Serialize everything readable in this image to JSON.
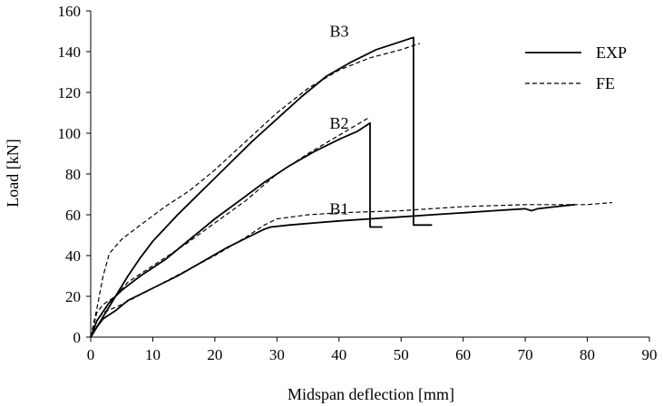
{
  "chart_data": {
    "type": "line",
    "title": "",
    "xlabel": "Midspan deflection [mm]",
    "ylabel": "Load [kN]",
    "xlim": [
      0,
      90
    ],
    "ylim": [
      0,
      160
    ],
    "xticks": [
      0,
      10,
      20,
      30,
      40,
      50,
      60,
      70,
      80,
      90
    ],
    "yticks": [
      0,
      20,
      40,
      60,
      80,
      100,
      120,
      140,
      160
    ],
    "grid": false,
    "legend": {
      "position": "top-right",
      "entries": [
        {
          "label": "EXP",
          "style": "solid"
        },
        {
          "label": "FE",
          "style": "dashed"
        }
      ]
    },
    "annotations": [
      {
        "text": "B3",
        "x": 38.5,
        "y": 150
      },
      {
        "text": "B2",
        "x": 38.5,
        "y": 105
      },
      {
        "text": "B1",
        "x": 38.5,
        "y": 63
      }
    ],
    "series": [
      {
        "group": "B1",
        "kind": "EXP",
        "style": "solid",
        "points": [
          [
            0,
            0
          ],
          [
            1,
            5
          ],
          [
            2,
            9
          ],
          [
            4,
            13
          ],
          [
            6,
            18
          ],
          [
            10,
            24
          ],
          [
            14,
            30
          ],
          [
            18,
            37
          ],
          [
            22,
            44
          ],
          [
            26,
            50
          ],
          [
            28,
            53
          ],
          [
            29,
            54
          ],
          [
            32,
            55
          ],
          [
            36,
            56
          ],
          [
            40,
            57
          ],
          [
            45,
            58
          ],
          [
            50,
            59
          ],
          [
            55,
            60
          ],
          [
            60,
            61
          ],
          [
            65,
            62
          ],
          [
            70,
            63
          ],
          [
            71,
            62
          ],
          [
            72,
            63
          ],
          [
            75,
            64
          ],
          [
            78,
            65
          ]
        ]
      },
      {
        "group": "B1",
        "kind": "FE",
        "style": "dashed",
        "points": [
          [
            0,
            0
          ],
          [
            1,
            8
          ],
          [
            2,
            12
          ],
          [
            5,
            16
          ],
          [
            10,
            24
          ],
          [
            15,
            32
          ],
          [
            20,
            40
          ],
          [
            25,
            49
          ],
          [
            28,
            55
          ],
          [
            30,
            58
          ],
          [
            35,
            60
          ],
          [
            40,
            61
          ],
          [
            50,
            62
          ],
          [
            60,
            64
          ],
          [
            70,
            65
          ],
          [
            80,
            65
          ],
          [
            84,
            66
          ]
        ]
      },
      {
        "group": "B2",
        "kind": "EXP",
        "style": "solid",
        "points": [
          [
            0,
            0
          ],
          [
            1,
            8
          ],
          [
            3,
            17
          ],
          [
            5,
            23
          ],
          [
            8,
            30
          ],
          [
            12,
            38
          ],
          [
            16,
            48
          ],
          [
            20,
            58
          ],
          [
            24,
            67
          ],
          [
            28,
            76
          ],
          [
            32,
            84
          ],
          [
            36,
            91
          ],
          [
            40,
            97
          ],
          [
            43,
            101
          ],
          [
            45,
            105
          ],
          [
            45,
            54
          ],
          [
            47,
            54
          ]
        ]
      },
      {
        "group": "B2",
        "kind": "FE",
        "style": "dashed",
        "points": [
          [
            0,
            0
          ],
          [
            1,
            12
          ],
          [
            2,
            16
          ],
          [
            4,
            20
          ],
          [
            6,
            27
          ],
          [
            10,
            35
          ],
          [
            15,
            45
          ],
          [
            20,
            56
          ],
          [
            25,
            67
          ],
          [
            30,
            80
          ],
          [
            35,
            90
          ],
          [
            40,
            99
          ],
          [
            45,
            108
          ]
        ]
      },
      {
        "group": "B3",
        "kind": "EXP",
        "style": "solid",
        "points": [
          [
            0,
            0
          ],
          [
            2,
            10
          ],
          [
            4,
            20
          ],
          [
            6,
            30
          ],
          [
            8,
            39
          ],
          [
            10,
            47
          ],
          [
            14,
            60
          ],
          [
            18,
            72
          ],
          [
            22,
            84
          ],
          [
            26,
            96
          ],
          [
            30,
            107
          ],
          [
            34,
            118
          ],
          [
            38,
            128
          ],
          [
            42,
            135
          ],
          [
            46,
            141
          ],
          [
            50,
            145
          ],
          [
            52,
            147
          ],
          [
            52,
            55
          ],
          [
            55,
            55
          ]
        ]
      },
      {
        "group": "B3",
        "kind": "FE",
        "style": "dashed",
        "points": [
          [
            0,
            0
          ],
          [
            1,
            14
          ],
          [
            2,
            30
          ],
          [
            3,
            41
          ],
          [
            5,
            48
          ],
          [
            8,
            55
          ],
          [
            12,
            64
          ],
          [
            16,
            72
          ],
          [
            20,
            82
          ],
          [
            25,
            96
          ],
          [
            30,
            110
          ],
          [
            35,
            122
          ],
          [
            40,
            131
          ],
          [
            45,
            137
          ],
          [
            50,
            141
          ],
          [
            53,
            144
          ]
        ]
      }
    ]
  }
}
